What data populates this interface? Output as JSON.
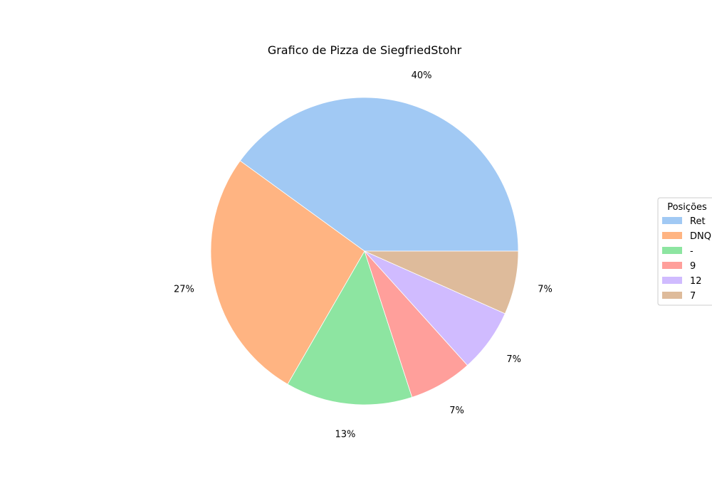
{
  "chart_data": {
    "type": "pie",
    "title": "Grafico de Pizza de SiegfriedStohr",
    "categories": [
      "Ret",
      "DNQ",
      "-",
      "9",
      "12",
      "7"
    ],
    "values": [
      6,
      4,
      2,
      1,
      1,
      1
    ],
    "percent_labels": [
      "40%",
      "27%",
      "13%",
      "7%",
      "7%",
      "7%"
    ],
    "colors": [
      "#a1c9f4",
      "#ffb482",
      "#8de5a1",
      "#ff9f9b",
      "#d0bbff",
      "#debb9b"
    ],
    "start_angle_deg": 0,
    "direction": "counterclockwise",
    "legend": {
      "title": "Posições",
      "placement": "center-right"
    }
  }
}
